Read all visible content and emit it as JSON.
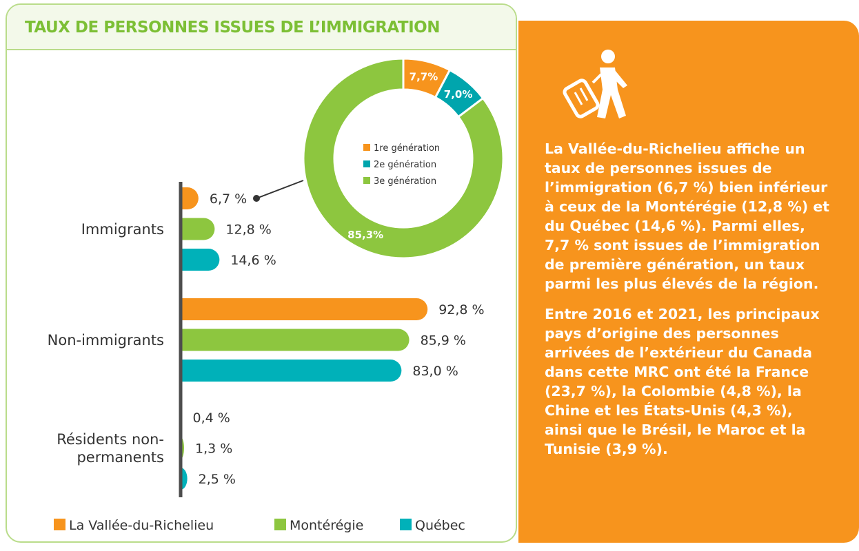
{
  "chart_data": [
    {
      "type": "bar",
      "title": "TAUX DE PERSONNES ISSUES DE L’IMMIGRATION",
      "categories": [
        "Immigrants",
        "Non-immigrants",
        "Résidents non-permanents"
      ],
      "xlim": [
        0,
        100
      ],
      "series": [
        {
          "name": "La Vallée-du-Richelieu",
          "color": "#f7941d",
          "values": [
            6.7,
            92.8,
            0.4
          ],
          "value_labels": [
            "6,7 %",
            "92,8 %",
            "0,4 %"
          ]
        },
        {
          "name": "Montérégie",
          "color": "#8dc63f",
          "values": [
            12.8,
            85.9,
            1.3
          ],
          "value_labels": [
            "12,8 %",
            "85,9 %",
            "1,3 %"
          ]
        },
        {
          "name": "Québec",
          "color": "#00b1b9",
          "values": [
            14.6,
            83.0,
            2.5
          ],
          "value_labels": [
            "14,6 %",
            "83,0 %",
            "2,5 %"
          ]
        }
      ]
    },
    {
      "type": "donut",
      "categories": [
        "1re génération",
        "2e génération",
        "3e génération"
      ],
      "values": [
        7.7,
        7.0,
        85.3
      ],
      "value_labels": [
        "7,7%",
        "7,0%",
        "85,3%"
      ],
      "colors": [
        "#f7941d",
        "#00a5ad",
        "#8dc63f"
      ]
    }
  ],
  "panel": {
    "paragraphs": [
      "La Vallée-du-Richelieu affiche un taux de personnes issues de l’immigration (6,7 %) bien inférieur à ceux de la Montérégie (12,8 %) et du Québec (14,6 %). Parmi elles, 7,7 % sont issues de l’immigration de première génération, un taux parmi les plus élevés de la région.",
      "Entre 2016 et 2021, les principaux pays d’origine des personnes arrivées de l’extérieur du Canada dans cette MRC ont été la France (23,7 %), la Colombie (4,8 %), la Chine et les États-Unis (4,3 %), ainsi que le Brésil, le Maroc et la Tunisie (3,9 %)."
    ]
  }
}
